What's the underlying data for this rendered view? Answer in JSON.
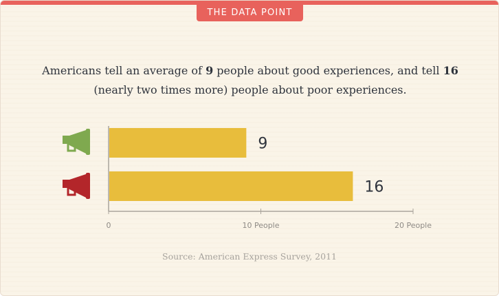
{
  "badge": {
    "label": "THE DATA POINT"
  },
  "headline": {
    "part1": "Americans tell an average of ",
    "num1": "9",
    "part2": " people about good experiences, and tell ",
    "num2": "16",
    "part3": "(nearly two times more) people about poor experiences."
  },
  "source": "Source: American Express Survey, 2011",
  "colors": {
    "accent": "#e8625c",
    "bar": "#e8bd3c",
    "good_icon": "#7fa94f",
    "poor_icon": "#b3262a",
    "axis": "#a9a49c",
    "background": "#faf4e8"
  },
  "icons": [
    "megaphone-good-icon",
    "megaphone-poor-icon"
  ],
  "chart_data": {
    "type": "bar",
    "orientation": "horizontal",
    "categories": [
      "megaphone-good-icon",
      "megaphone-poor-icon"
    ],
    "values": [
      9,
      16
    ],
    "value_labels": [
      "9",
      "16"
    ],
    "xlim": [
      0,
      20
    ],
    "xticks": [
      0,
      10,
      20
    ],
    "tick_labels": [
      "0",
      "10 People",
      "20 People"
    ],
    "grid": false,
    "legend": "none"
  }
}
